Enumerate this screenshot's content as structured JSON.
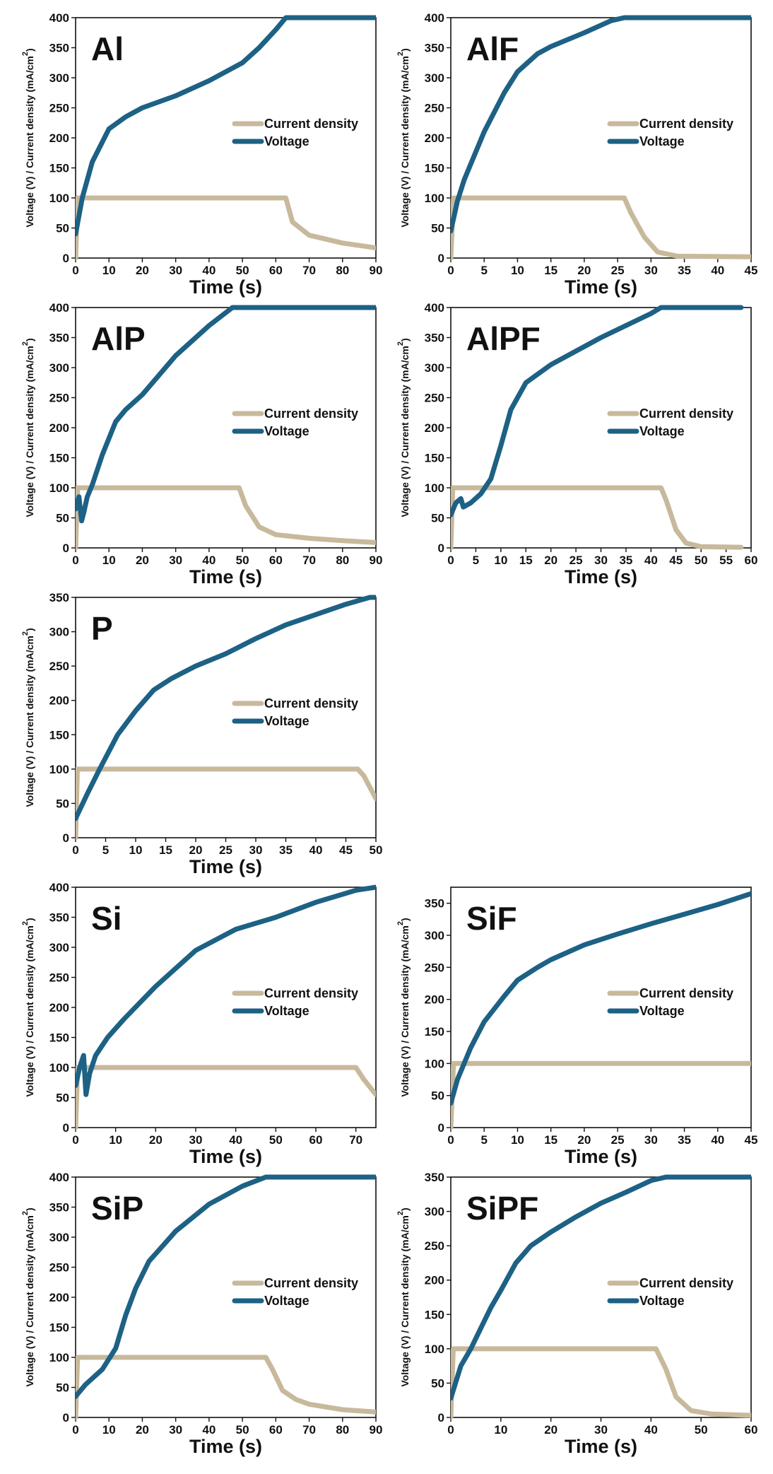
{
  "figure": {
    "x_axis_label": "Time (s)",
    "y_axis_label": "Voltage (V) / Current density (mA/cm",
    "y_axis_label_superscript": "2",
    "y_axis_label_end": ")"
  },
  "colors": {
    "current_density": "#c8b99c",
    "voltage": "#1d6185",
    "axis": "#111111"
  },
  "chart_data": [
    {
      "type": "line",
      "title": "Al",
      "xlabel": "Time (s)",
      "ylabel": "Voltage (V) / Current density (mA/cm2)",
      "xlim": [
        0,
        90
      ],
      "ylim": [
        0,
        400
      ],
      "xticks": [
        0,
        10,
        20,
        30,
        40,
        50,
        60,
        70,
        80,
        90
      ],
      "yticks": [
        0,
        50,
        100,
        150,
        200,
        250,
        300,
        350,
        400
      ],
      "legend": [
        "Current density",
        "Voltage"
      ],
      "series": [
        {
          "name": "Current density",
          "points": [
            [
              0,
              0
            ],
            [
              0.6,
              100
            ],
            [
              63,
              100
            ],
            [
              65,
              60
            ],
            [
              70,
              38
            ],
            [
              80,
              25
            ],
            [
              90,
              17
            ]
          ]
        },
        {
          "name": "Voltage",
          "points": [
            [
              0,
              40
            ],
            [
              2,
              100
            ],
            [
              5,
              160
            ],
            [
              10,
              215
            ],
            [
              15,
              235
            ],
            [
              20,
              250
            ],
            [
              30,
              270
            ],
            [
              40,
              295
            ],
            [
              50,
              325
            ],
            [
              55,
              350
            ],
            [
              60,
              380
            ],
            [
              63,
              400
            ],
            [
              90,
              400
            ]
          ]
        }
      ]
    },
    {
      "type": "line",
      "title": "AlF",
      "xlabel": "Time (s)",
      "ylabel": "Voltage (V) / Current density (mA/cm2)",
      "xlim": [
        0,
        45
      ],
      "ylim": [
        0,
        400
      ],
      "xticks": [
        0,
        5,
        10,
        15,
        20,
        25,
        30,
        35,
        40,
        45
      ],
      "yticks": [
        0,
        50,
        100,
        150,
        200,
        250,
        300,
        350,
        400
      ],
      "legend": [
        "Current density",
        "Voltage"
      ],
      "series": [
        {
          "name": "Current density",
          "points": [
            [
              0,
              0
            ],
            [
              0.4,
              100
            ],
            [
              26,
              100
            ],
            [
              27,
              75
            ],
            [
              29,
              35
            ],
            [
              31,
              10
            ],
            [
              34,
              3
            ],
            [
              45,
              2
            ]
          ]
        },
        {
          "name": "Voltage",
          "points": [
            [
              0,
              45
            ],
            [
              1,
              95
            ],
            [
              2,
              130
            ],
            [
              5,
              210
            ],
            [
              8,
              275
            ],
            [
              10,
              310
            ],
            [
              13,
              340
            ],
            [
              15,
              352
            ],
            [
              20,
              375
            ],
            [
              24,
              395
            ],
            [
              26,
              400
            ],
            [
              45,
              400
            ]
          ]
        }
      ]
    },
    {
      "type": "line",
      "title": "AlP",
      "xlabel": "Time (s)",
      "ylabel": "Voltage (V) / Current density (mA/cm2)",
      "xlim": [
        0,
        90
      ],
      "ylim": [
        0,
        400
      ],
      "xticks": [
        0,
        10,
        20,
        30,
        40,
        50,
        60,
        70,
        80,
        90
      ],
      "yticks": [
        0,
        50,
        100,
        150,
        200,
        250,
        300,
        350,
        400
      ],
      "legend": [
        "Current density",
        "Voltage"
      ],
      "series": [
        {
          "name": "Current density",
          "points": [
            [
              0,
              0
            ],
            [
              0.6,
              100
            ],
            [
              49,
              100
            ],
            [
              51,
              70
            ],
            [
              55,
              35
            ],
            [
              60,
              22
            ],
            [
              70,
              16
            ],
            [
              80,
              12
            ],
            [
              90,
              9
            ]
          ]
        },
        {
          "name": "Voltage",
          "points": [
            [
              0,
              65
            ],
            [
              1,
              85
            ],
            [
              1.8,
              45
            ],
            [
              2.5,
              60
            ],
            [
              3.5,
              85
            ],
            [
              5,
              105
            ],
            [
              8,
              155
            ],
            [
              12,
              210
            ],
            [
              15,
              230
            ],
            [
              20,
              255
            ],
            [
              30,
              320
            ],
            [
              40,
              370
            ],
            [
              47,
              400
            ],
            [
              90,
              400
            ]
          ]
        }
      ]
    },
    {
      "type": "line",
      "title": "AlPF",
      "xlabel": "Time (s)",
      "ylabel": "Voltage (V) / Current density (mA/cm2)",
      "xlim": [
        0,
        60
      ],
      "ylim": [
        0,
        400
      ],
      "xticks": [
        0,
        5,
        10,
        15,
        20,
        25,
        30,
        35,
        40,
        45,
        50,
        55,
        60
      ],
      "yticks": [
        0,
        50,
        100,
        150,
        200,
        250,
        300,
        350,
        400
      ],
      "legend": [
        "Current density",
        "Voltage"
      ],
      "series": [
        {
          "name": "Current density",
          "points": [
            [
              0,
              0
            ],
            [
              0.4,
              100
            ],
            [
              42,
              100
            ],
            [
              43,
              80
            ],
            [
              45,
              30
            ],
            [
              47,
              8
            ],
            [
              50,
              2
            ],
            [
              58,
              1
            ]
          ]
        },
        {
          "name": "Voltage",
          "points": [
            [
              0,
              55
            ],
            [
              1,
              75
            ],
            [
              2,
              82
            ],
            [
              2.5,
              68
            ],
            [
              4,
              75
            ],
            [
              6,
              90
            ],
            [
              8,
              115
            ],
            [
              10,
              170
            ],
            [
              12,
              230
            ],
            [
              15,
              275
            ],
            [
              20,
              305
            ],
            [
              30,
              350
            ],
            [
              40,
              390
            ],
            [
              42,
              400
            ],
            [
              58,
              400
            ]
          ]
        }
      ]
    },
    {
      "type": "line",
      "title": "P",
      "xlabel": "Time (s)",
      "ylabel": "Voltage (V) / Current density (mA/cm2)",
      "xlim": [
        0,
        50
      ],
      "ylim": [
        0,
        350
      ],
      "xticks": [
        0,
        5,
        10,
        15,
        20,
        25,
        30,
        35,
        40,
        45,
        50
      ],
      "yticks": [
        0,
        50,
        100,
        150,
        200,
        250,
        300,
        350
      ],
      "legend": [
        "Current density",
        "Voltage"
      ],
      "series": [
        {
          "name": "Current density",
          "points": [
            [
              0,
              0
            ],
            [
              0.3,
              100
            ],
            [
              47,
              100
            ],
            [
              48,
              90
            ],
            [
              50,
              57
            ]
          ]
        },
        {
          "name": "Voltage",
          "points": [
            [
              0,
              28
            ],
            [
              2,
              65
            ],
            [
              4,
              100
            ],
            [
              7,
              150
            ],
            [
              10,
              185
            ],
            [
              13,
              215
            ],
            [
              16,
              232
            ],
            [
              20,
              250
            ],
            [
              25,
              268
            ],
            [
              30,
              290
            ],
            [
              35,
              310
            ],
            [
              40,
              325
            ],
            [
              45,
              340
            ],
            [
              49,
              350
            ],
            [
              50,
              350
            ]
          ]
        }
      ]
    },
    {
      "type": "line",
      "title": "Si",
      "xlabel": "Time (s)",
      "ylabel": "Voltage (V) / Current density (mA/cm2)",
      "xlim": [
        0,
        75
      ],
      "ylim": [
        0,
        400
      ],
      "xticks": [
        0,
        10,
        20,
        30,
        40,
        50,
        60,
        70
      ],
      "yticks": [
        0,
        50,
        100,
        150,
        200,
        250,
        300,
        350,
        400
      ],
      "legend": [
        "Current density",
        "Voltage"
      ],
      "series": [
        {
          "name": "Current density",
          "points": [
            [
              0,
              0
            ],
            [
              0.5,
              100
            ],
            [
              70,
              100
            ],
            [
              72,
              80
            ],
            [
              75,
              55
            ]
          ]
        },
        {
          "name": "Voltage",
          "points": [
            [
              0,
              70
            ],
            [
              1,
              100
            ],
            [
              2,
              120
            ],
            [
              2.6,
              55
            ],
            [
              3.5,
              90
            ],
            [
              5,
              120
            ],
            [
              8,
              150
            ],
            [
              12,
              180
            ],
            [
              20,
              235
            ],
            [
              30,
              295
            ],
            [
              40,
              330
            ],
            [
              50,
              350
            ],
            [
              60,
              375
            ],
            [
              70,
              395
            ],
            [
              75,
              400
            ]
          ]
        }
      ]
    },
    {
      "type": "line",
      "title": "SiF",
      "xlabel": "Time (s)",
      "ylabel": "Voltage (V) / Current density (mA/cm2)",
      "xlim": [
        0,
        45
      ],
      "ylim": [
        0,
        375
      ],
      "xticks": [
        0,
        5,
        10,
        15,
        20,
        25,
        30,
        35,
        40,
        45
      ],
      "yticks": [
        0,
        50,
        100,
        150,
        200,
        250,
        300,
        350
      ],
      "legend": [
        "Current density",
        "Voltage"
      ],
      "series": [
        {
          "name": "Current density",
          "points": [
            [
              0,
              0
            ],
            [
              0.4,
              100
            ],
            [
              45,
              100
            ]
          ]
        },
        {
          "name": "Voltage",
          "points": [
            [
              0,
              38
            ],
            [
              1,
              75
            ],
            [
              3,
              125
            ],
            [
              5,
              165
            ],
            [
              8,
              205
            ],
            [
              10,
              230
            ],
            [
              13,
              250
            ],
            [
              15,
              262
            ],
            [
              20,
              285
            ],
            [
              25,
              302
            ],
            [
              30,
              318
            ],
            [
              35,
              333
            ],
            [
              40,
              348
            ],
            [
              45,
              365
            ]
          ]
        }
      ]
    },
    {
      "type": "line",
      "title": "SiP",
      "xlabel": "Time (s)",
      "ylabel": "Voltage (V) / Current density (mA/cm2)",
      "xlim": [
        0,
        90
      ],
      "ylim": [
        0,
        400
      ],
      "xticks": [
        0,
        10,
        20,
        30,
        40,
        50,
        60,
        70,
        80,
        90
      ],
      "yticks": [
        0,
        50,
        100,
        150,
        200,
        250,
        300,
        350,
        400
      ],
      "legend": [
        "Current density",
        "Voltage"
      ],
      "series": [
        {
          "name": "Current density",
          "points": [
            [
              0,
              0
            ],
            [
              0.6,
              100
            ],
            [
              57,
              100
            ],
            [
              59,
              80
            ],
            [
              62,
              45
            ],
            [
              66,
              30
            ],
            [
              70,
              22
            ],
            [
              80,
              13
            ],
            [
              90,
              9
            ]
          ]
        },
        {
          "name": "Voltage",
          "points": [
            [
              0,
              35
            ],
            [
              3,
              55
            ],
            [
              8,
              80
            ],
            [
              12,
              115
            ],
            [
              15,
              170
            ],
            [
              18,
              215
            ],
            [
              22,
              260
            ],
            [
              26,
              285
            ],
            [
              30,
              310
            ],
            [
              40,
              355
            ],
            [
              50,
              385
            ],
            [
              57,
              400
            ],
            [
              90,
              400
            ]
          ]
        }
      ]
    },
    {
      "type": "line",
      "title": "SiPF",
      "xlabel": "Time (s)",
      "ylabel": "Voltage (V) / Current density (mA/cm2)",
      "xlim": [
        0,
        60
      ],
      "ylim": [
        0,
        350
      ],
      "xticks": [
        0,
        10,
        20,
        30,
        40,
        50,
        60
      ],
      "yticks": [
        0,
        50,
        100,
        150,
        200,
        250,
        300,
        350
      ],
      "legend": [
        "Current density",
        "Voltage"
      ],
      "series": [
        {
          "name": "Current density",
          "points": [
            [
              0,
              0
            ],
            [
              0.5,
              100
            ],
            [
              41,
              100
            ],
            [
              43,
              70
            ],
            [
              45,
              30
            ],
            [
              48,
              10
            ],
            [
              52,
              5
            ],
            [
              60,
              3
            ]
          ]
        },
        {
          "name": "Voltage",
          "points": [
            [
              0,
              28
            ],
            [
              2,
              75
            ],
            [
              4,
              100
            ],
            [
              6,
              130
            ],
            [
              8,
              160
            ],
            [
              10,
              185
            ],
            [
              13,
              225
            ],
            [
              16,
              250
            ],
            [
              20,
              270
            ],
            [
              25,
              292
            ],
            [
              30,
              312
            ],
            [
              35,
              328
            ],
            [
              40,
              345
            ],
            [
              43,
              350
            ],
            [
              60,
              350
            ]
          ]
        }
      ]
    }
  ]
}
